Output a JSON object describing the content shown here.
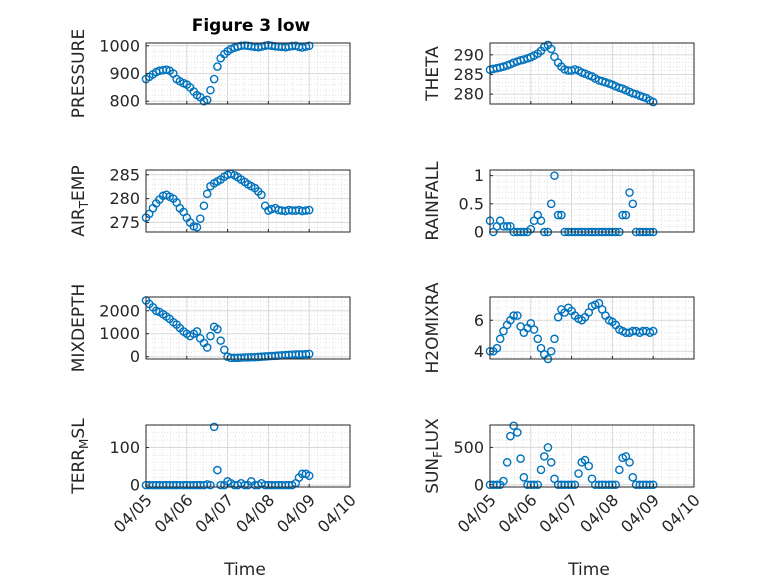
{
  "figure": {
    "title": "Figure 3 low"
  },
  "chart_data": [
    {
      "type": "scatter",
      "ylabel": "PRESSURE",
      "xlabel": "",
      "ylim": [
        790,
        1010
      ],
      "yticks": [
        800,
        900,
        1000
      ],
      "xticks": [
        "04/05",
        "04/06",
        "04/07",
        "04/08",
        "04/09",
        "04/10"
      ],
      "show_xtick_labels": false,
      "color": "#0072BD",
      "x": [
        0.0,
        0.08,
        0.17,
        0.25,
        0.33,
        0.42,
        0.5,
        0.58,
        0.67,
        0.75,
        0.83,
        0.92,
        1.0,
        1.08,
        1.17,
        1.25,
        1.33,
        1.42,
        1.5,
        1.58,
        1.67,
        1.75,
        1.83,
        1.92,
        2.0,
        2.08,
        2.17,
        2.25,
        2.33,
        2.42,
        2.5,
        2.58,
        2.67,
        2.75,
        2.83,
        2.92,
        3.0,
        3.08,
        3.17,
        3.25,
        3.33,
        3.42,
        3.5,
        3.58,
        3.67,
        3.75,
        3.83,
        3.92,
        4.0
      ],
      "y": [
        880,
        888,
        897,
        905,
        910,
        912,
        914,
        910,
        900,
        880,
        872,
        865,
        860,
        850,
        835,
        822,
        815,
        800,
        805,
        840,
        880,
        925,
        955,
        970,
        980,
        988,
        993,
        997,
        1000,
        1001,
        1000,
        998,
        996,
        995,
        997,
        1000,
        1002,
        1000,
        998,
        997,
        996,
        995,
        997,
        999,
        1000,
        996,
        994,
        997,
        1000
      ]
    },
    {
      "type": "scatter",
      "ylabel": "THETA",
      "xlabel": "",
      "ylim": [
        277.5,
        293
      ],
      "yticks": [
        280,
        285,
        290
      ],
      "xticks": [
        "04/05",
        "04/06",
        "04/07",
        "04/08",
        "04/09",
        "04/10"
      ],
      "show_xtick_labels": false,
      "color": "#0072BD",
      "x": [
        0.0,
        0.08,
        0.17,
        0.25,
        0.33,
        0.42,
        0.5,
        0.58,
        0.67,
        0.75,
        0.83,
        0.92,
        1.0,
        1.08,
        1.17,
        1.25,
        1.33,
        1.42,
        1.5,
        1.58,
        1.67,
        1.75,
        1.83,
        1.92,
        2.0,
        2.08,
        2.17,
        2.25,
        2.33,
        2.42,
        2.5,
        2.58,
        2.67,
        2.75,
        2.83,
        2.92,
        3.0,
        3.08,
        3.17,
        3.25,
        3.33,
        3.42,
        3.5,
        3.58,
        3.67,
        3.75,
        3.83,
        3.92,
        4.0
      ],
      "y": [
        286.2,
        286.4,
        286.6,
        286.8,
        287.0,
        287.3,
        287.6,
        288.0,
        288.3,
        288.6,
        288.8,
        289.1,
        289.4,
        289.8,
        290.3,
        291.0,
        292.0,
        292.5,
        291.5,
        289.5,
        288.0,
        287.0,
        286.3,
        286.0,
        286.0,
        286.3,
        286.0,
        285.5,
        285.2,
        284.8,
        284.5,
        284.0,
        283.5,
        283.3,
        283.0,
        282.7,
        282.4,
        282.0,
        281.6,
        281.4,
        281.0,
        280.6,
        280.2,
        280.0,
        279.6,
        279.3,
        279.0,
        278.4,
        278.0
      ]
    },
    {
      "type": "scatter",
      "ylabel": "AIR_TEMP",
      "xlabel": "",
      "ylim": [
        273,
        286
      ],
      "yticks": [
        275,
        280,
        285
      ],
      "xticks": [
        "04/05",
        "04/06",
        "04/07",
        "04/08",
        "04/09",
        "04/10"
      ],
      "show_xtick_labels": false,
      "color": "#0072BD",
      "x": [
        0.0,
        0.08,
        0.17,
        0.25,
        0.33,
        0.42,
        0.5,
        0.58,
        0.67,
        0.75,
        0.83,
        0.92,
        1.0,
        1.08,
        1.17,
        1.25,
        1.33,
        1.42,
        1.5,
        1.58,
        1.67,
        1.75,
        1.83,
        1.92,
        2.0,
        2.08,
        2.17,
        2.25,
        2.33,
        2.42,
        2.5,
        2.58,
        2.67,
        2.75,
        2.83,
        2.92,
        3.0,
        3.08,
        3.17,
        3.25,
        3.33,
        3.42,
        3.5,
        3.58,
        3.67,
        3.75,
        3.83,
        3.92,
        4.0
      ],
      "y": [
        276.0,
        276.8,
        278.0,
        279.0,
        279.8,
        280.6,
        280.8,
        280.4,
        280.0,
        279.2,
        278.0,
        277.2,
        276.0,
        275.0,
        274.2,
        274.0,
        275.8,
        278.5,
        281.0,
        282.6,
        283.2,
        283.6,
        284.0,
        284.6,
        285.0,
        285.2,
        284.9,
        284.5,
        284.0,
        283.5,
        283.0,
        282.6,
        282.2,
        281.5,
        280.8,
        278.5,
        277.5,
        277.8,
        278.0,
        277.6,
        277.5,
        277.4,
        277.6,
        277.5,
        277.5,
        277.6,
        277.4,
        277.5,
        277.6
      ]
    },
    {
      "type": "scatter",
      "ylabel": "RAINFALL",
      "xlabel": "",
      "ylim": [
        0,
        1.1
      ],
      "yticks": [
        0,
        0.5,
        1
      ],
      "xticks": [
        "04/05",
        "04/06",
        "04/07",
        "04/08",
        "04/09",
        "04/10"
      ],
      "show_xtick_labels": false,
      "color": "#0072BD",
      "x": [
        0.0,
        0.08,
        0.17,
        0.25,
        0.33,
        0.42,
        0.5,
        0.58,
        0.67,
        0.75,
        0.83,
        0.92,
        1.0,
        1.08,
        1.17,
        1.25,
        1.33,
        1.42,
        1.5,
        1.58,
        1.67,
        1.75,
        1.83,
        1.92,
        2.0,
        2.08,
        2.17,
        2.25,
        2.33,
        2.42,
        2.5,
        2.58,
        2.67,
        2.75,
        2.83,
        2.92,
        3.0,
        3.08,
        3.17,
        3.25,
        3.33,
        3.42,
        3.5,
        3.58,
        3.67,
        3.75,
        3.83,
        3.92,
        4.0
      ],
      "y": [
        0.2,
        0.0,
        0.1,
        0.2,
        0.1,
        0.1,
        0.1,
        0.0,
        0.0,
        0.0,
        0.0,
        0.0,
        0.05,
        0.2,
        0.3,
        0.2,
        0.0,
        0.0,
        0.5,
        1.0,
        0.3,
        0.3,
        0.0,
        0.0,
        0.0,
        0.0,
        0.0,
        0.0,
        0.0,
        0.0,
        0.0,
        0.0,
        0.0,
        0.0,
        0.0,
        0.0,
        0.0,
        0.0,
        0.0,
        0.3,
        0.3,
        0.7,
        0.5,
        0.0,
        0.0,
        0.0,
        0.0,
        0.0,
        0.0
      ]
    },
    {
      "type": "scatter",
      "ylabel": "MIXDEPTH",
      "xlabel": "",
      "ylim": [
        -100,
        2600
      ],
      "yticks": [
        0,
        1000,
        2000
      ],
      "xticks": [
        "04/05",
        "04/06",
        "04/07",
        "04/08",
        "04/09",
        "04/10"
      ],
      "show_xtick_labels": false,
      "color": "#0072BD",
      "x": [
        0.0,
        0.08,
        0.17,
        0.25,
        0.33,
        0.42,
        0.5,
        0.58,
        0.67,
        0.75,
        0.83,
        0.92,
        1.0,
        1.08,
        1.17,
        1.25,
        1.33,
        1.42,
        1.5,
        1.58,
        1.67,
        1.75,
        1.83,
        1.92,
        2.0,
        2.08,
        2.17,
        2.25,
        2.33,
        2.42,
        2.5,
        2.58,
        2.67,
        2.75,
        2.83,
        2.92,
        3.0,
        3.08,
        3.17,
        3.25,
        3.33,
        3.42,
        3.5,
        3.58,
        3.67,
        3.75,
        3.83,
        3.92,
        4.0
      ],
      "y": [
        2450,
        2300,
        2150,
        2000,
        1950,
        1850,
        1750,
        1650,
        1500,
        1400,
        1250,
        1100,
        1000,
        900,
        1000,
        1100,
        800,
        600,
        400,
        900,
        1300,
        1200,
        700,
        300,
        0,
        -50,
        -50,
        -50,
        -40,
        -30,
        -30,
        -20,
        -20,
        -10,
        0,
        10,
        20,
        30,
        40,
        50,
        60,
        70,
        80,
        90,
        100,
        100,
        100,
        110,
        120
      ]
    },
    {
      "type": "scatter",
      "ylabel": "H2OMIXRA",
      "xlabel": "",
      "ylim": [
        3.5,
        7.5
      ],
      "yticks": [
        4,
        6
      ],
      "xticks": [
        "04/05",
        "04/06",
        "04/07",
        "04/08",
        "04/09",
        "04/10"
      ],
      "show_xtick_labels": false,
      "color": "#0072BD",
      "x": [
        0.0,
        0.08,
        0.17,
        0.25,
        0.33,
        0.42,
        0.5,
        0.58,
        0.67,
        0.75,
        0.83,
        0.92,
        1.0,
        1.08,
        1.17,
        1.25,
        1.33,
        1.42,
        1.5,
        1.58,
        1.67,
        1.75,
        1.83,
        1.92,
        2.0,
        2.08,
        2.17,
        2.25,
        2.33,
        2.42,
        2.5,
        2.58,
        2.67,
        2.75,
        2.83,
        2.92,
        3.0,
        3.08,
        3.17,
        3.25,
        3.33,
        3.42,
        3.5,
        3.58,
        3.67,
        3.75,
        3.83,
        3.92,
        4.0
      ],
      "y": [
        4.0,
        4.0,
        4.2,
        4.8,
        5.3,
        5.7,
        6.0,
        6.3,
        6.3,
        5.6,
        5.2,
        5.5,
        5.8,
        5.4,
        4.8,
        4.2,
        3.8,
        3.5,
        4.0,
        4.8,
        6.2,
        6.7,
        6.5,
        6.8,
        6.6,
        6.3,
        6.1,
        6.0,
        6.2,
        6.5,
        6.9,
        7.0,
        7.1,
        6.7,
        6.3,
        6.0,
        5.9,
        5.7,
        5.4,
        5.3,
        5.2,
        5.2,
        5.3,
        5.3,
        5.2,
        5.3,
        5.3,
        5.2,
        5.3
      ]
    },
    {
      "type": "scatter",
      "ylabel": "TERR_MSL",
      "xlabel": "Time",
      "ylim": [
        -5,
        160
      ],
      "yticks": [
        0,
        100
      ],
      "xticks": [
        "04/05",
        "04/06",
        "04/07",
        "04/08",
        "04/09",
        "04/10"
      ],
      "show_xtick_labels": true,
      "color": "#0072BD",
      "x": [
        0.0,
        0.08,
        0.17,
        0.25,
        0.33,
        0.42,
        0.5,
        0.58,
        0.67,
        0.75,
        0.83,
        0.92,
        1.0,
        1.08,
        1.17,
        1.25,
        1.33,
        1.42,
        1.5,
        1.58,
        1.67,
        1.75,
        1.83,
        1.92,
        2.0,
        2.08,
        2.17,
        2.25,
        2.33,
        2.42,
        2.5,
        2.58,
        2.67,
        2.75,
        2.83,
        2.92,
        3.0,
        3.08,
        3.17,
        3.25,
        3.33,
        3.42,
        3.5,
        3.58,
        3.67,
        3.75,
        3.83,
        3.92,
        4.0
      ],
      "y": [
        0,
        0,
        0,
        0,
        0,
        0,
        0,
        0,
        0,
        0,
        0,
        0,
        0,
        0,
        0,
        0,
        0,
        0,
        2,
        0,
        155,
        40,
        0,
        0,
        10,
        5,
        0,
        0,
        5,
        0,
        0,
        10,
        0,
        0,
        5,
        0,
        0,
        0,
        0,
        0,
        0,
        0,
        0,
        0,
        5,
        20,
        30,
        30,
        25
      ]
    },
    {
      "type": "scatter",
      "ylabel": "SUN_FLUX",
      "xlabel": "Time",
      "ylim": [
        -30,
        800
      ],
      "yticks": [
        0,
        500
      ],
      "xticks": [
        "04/05",
        "04/06",
        "04/07",
        "04/08",
        "04/09",
        "04/10"
      ],
      "show_xtick_labels": true,
      "color": "#0072BD",
      "x": [
        0.0,
        0.08,
        0.17,
        0.25,
        0.33,
        0.42,
        0.5,
        0.58,
        0.67,
        0.75,
        0.83,
        0.92,
        1.0,
        1.08,
        1.17,
        1.25,
        1.33,
        1.42,
        1.5,
        1.58,
        1.67,
        1.75,
        1.83,
        1.92,
        2.0,
        2.08,
        2.17,
        2.25,
        2.33,
        2.42,
        2.5,
        2.58,
        2.67,
        2.75,
        2.83,
        2.92,
        3.0,
        3.08,
        3.17,
        3.25,
        3.33,
        3.42,
        3.5,
        3.58,
        3.67,
        3.75,
        3.83,
        3.92,
        4.0
      ],
      "y": [
        0,
        0,
        0,
        0,
        50,
        300,
        650,
        790,
        700,
        350,
        100,
        0,
        0,
        0,
        0,
        200,
        380,
        500,
        300,
        80,
        0,
        0,
        0,
        0,
        0,
        0,
        150,
        300,
        330,
        250,
        80,
        0,
        0,
        0,
        0,
        0,
        0,
        0,
        200,
        360,
        380,
        300,
        100,
        0,
        0,
        0,
        0,
        0,
        0
      ]
    }
  ]
}
